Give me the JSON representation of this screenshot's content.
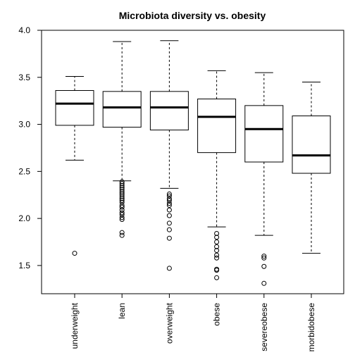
{
  "chart_data": {
    "type": "box",
    "title": "Microbiota diversity vs. obesity",
    "xlabel": "",
    "ylabel": "",
    "ylim": [
      1.2,
      4.0
    ],
    "y_ticks": [
      1.5,
      2.0,
      2.5,
      3.0,
      3.5,
      4.0
    ],
    "y_tick_labels": [
      "1.5",
      "2.0",
      "2.5",
      "3.0",
      "3.5",
      "4.0"
    ],
    "grid": false,
    "categories": [
      "underweight",
      "lean",
      "overweight",
      "obese",
      "severeobese",
      "morbidobese"
    ],
    "boxes": [
      {
        "category": "underweight",
        "whisker_low": 2.62,
        "q1": 2.99,
        "median": 3.22,
        "q3": 3.36,
        "whisker_high": 3.51,
        "outliers": [
          1.63
        ]
      },
      {
        "category": "lean",
        "whisker_low": 2.4,
        "q1": 2.97,
        "median": 3.18,
        "q3": 3.35,
        "whisker_high": 3.88,
        "outliers": [
          2.39,
          2.37,
          2.35,
          2.33,
          2.31,
          2.29,
          2.27,
          2.25,
          2.23,
          2.21,
          2.19,
          2.17,
          2.14,
          2.12,
          2.09,
          2.06,
          2.04,
          2.01,
          1.99,
          1.85,
          1.82
        ]
      },
      {
        "category": "overweight",
        "whisker_low": 2.32,
        "q1": 2.94,
        "median": 3.18,
        "q3": 3.35,
        "whisker_high": 3.89,
        "outliers": [
          2.26,
          2.24,
          2.21,
          2.19,
          2.16,
          2.14,
          2.09,
          2.03,
          1.95,
          1.88,
          1.79,
          1.47
        ]
      },
      {
        "category": "obese",
        "whisker_low": 1.91,
        "q1": 2.7,
        "median": 3.08,
        "q3": 3.27,
        "whisker_high": 3.57,
        "outliers": [
          1.84,
          1.8,
          1.75,
          1.7,
          1.66,
          1.61,
          1.58,
          1.46,
          1.45,
          1.37
        ]
      },
      {
        "category": "severeobese",
        "whisker_low": 1.82,
        "q1": 2.6,
        "median": 2.95,
        "q3": 3.2,
        "whisker_high": 3.55,
        "outliers": [
          1.6,
          1.58,
          1.49,
          1.31
        ]
      },
      {
        "category": "morbidobese",
        "whisker_low": 1.63,
        "q1": 2.48,
        "median": 2.67,
        "q3": 3.09,
        "whisker_high": 3.45,
        "outliers": []
      }
    ]
  }
}
